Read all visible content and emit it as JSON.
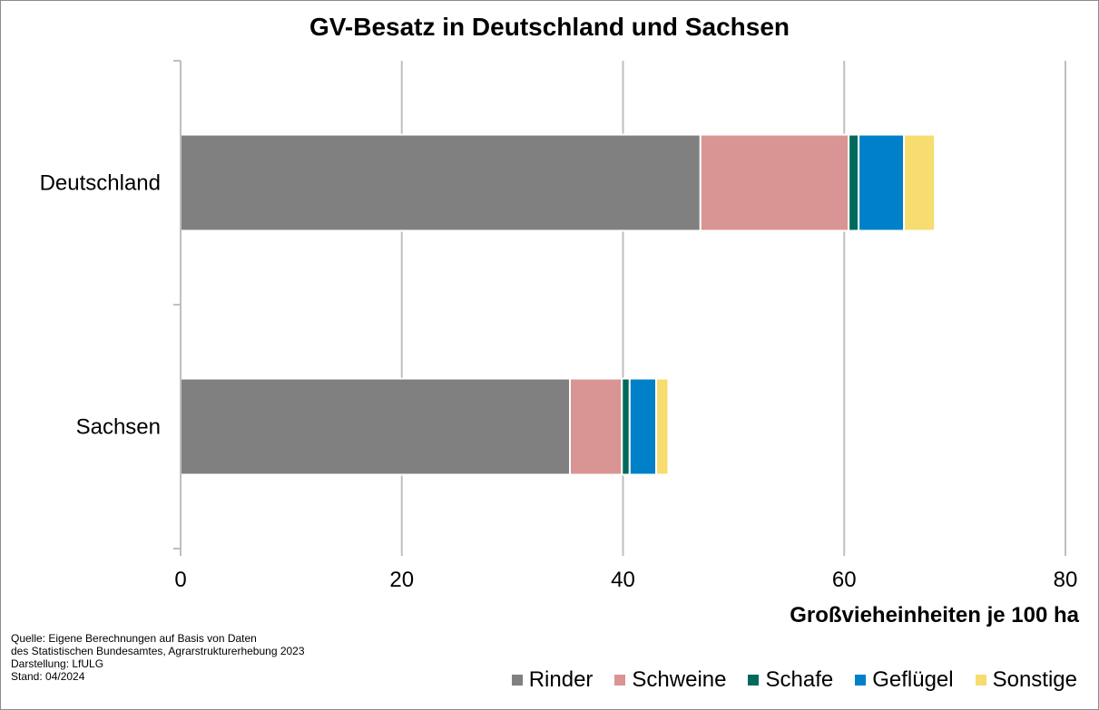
{
  "chart_data": {
    "type": "bar",
    "orientation": "horizontal",
    "stacked": true,
    "title": "GV-Besatz in Deutschland und Sachsen",
    "xlabel": "Großvieheinheiten je 100 ha",
    "ylabel": "",
    "categories": [
      "Deutschland",
      "Sachsen"
    ],
    "xlim": [
      0,
      80
    ],
    "xticks": [
      "0",
      "20",
      "40",
      "60",
      "80"
    ],
    "grid": true,
    "legend_position": "bottom-right",
    "series": [
      {
        "name": "Rinder",
        "color": "#808080",
        "values": [
          47.0,
          35.2
        ]
      },
      {
        "name": "Schweine",
        "color": "#d99594",
        "values": [
          13.4,
          4.7
        ]
      },
      {
        "name": "Schafe",
        "color": "#00695c",
        "values": [
          0.9,
          0.7
        ]
      },
      {
        "name": "Geflügel",
        "color": "#0080c8",
        "values": [
          4.1,
          2.4
        ]
      },
      {
        "name": "Sonstige",
        "color": "#f7dc6f",
        "values": [
          2.8,
          1.1
        ]
      }
    ]
  },
  "source_note": [
    "Quelle: Eigene Berechnungen  auf Basis von Daten",
    "des Statistischen Bundesamtes, Agrarstrukturerhebung  2023",
    "Darstellung: LfULG",
    "Stand: 04/2024"
  ]
}
